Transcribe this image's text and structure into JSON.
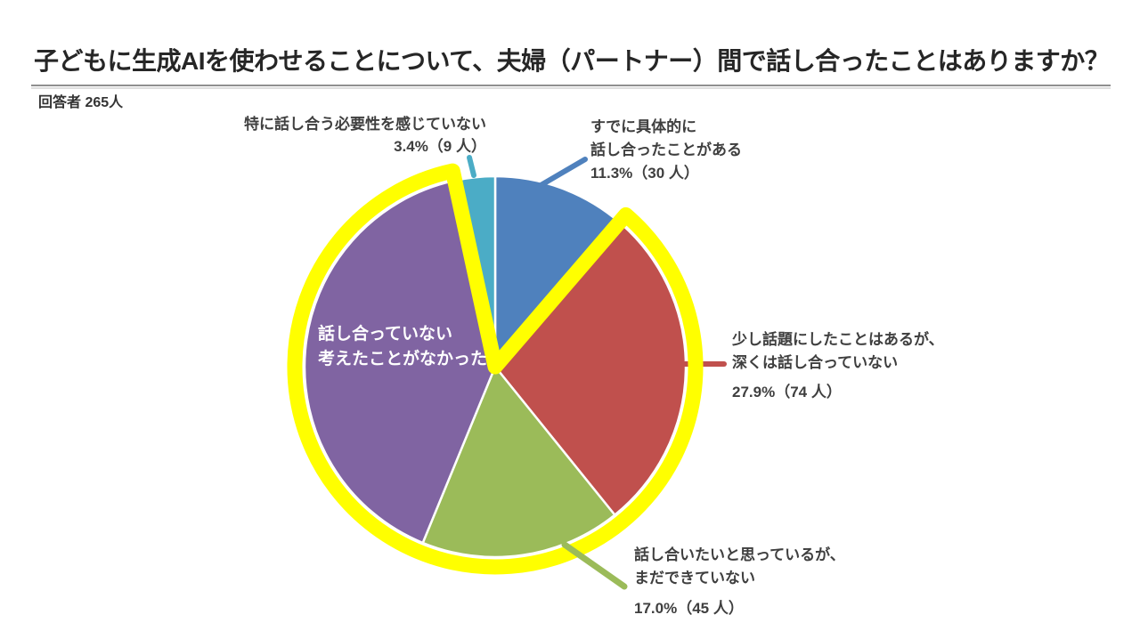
{
  "title": "子どもに生成AIを使わせることについて、夫婦（パートナー）間で話し合ったことはありますか？",
  "respondents": "回答者 265人",
  "chart_data": {
    "type": "pie",
    "title": "子どもに生成AIを使わせることについて、夫婦（パートナー）間で話し合ったことはありますか？",
    "total_label": "回答者 265人",
    "total": 265,
    "unit": "人",
    "start_angle_deg": 0,
    "direction": "clockwise",
    "highlight_color": "#FFFF00",
    "separator_color": "#FFFFFF",
    "slices": [
      {
        "key": "already-discussed",
        "label": "すでに具体的に話し合ったことがある",
        "percent": 11.3,
        "count": 30,
        "color": "#4F81BD",
        "highlighted": false
      },
      {
        "key": "discussed-lightly",
        "label": "少し話題にしたことはあるが、深くは話し合っていない",
        "percent": 27.9,
        "count": 74,
        "color": "#C0504D",
        "highlighted": true
      },
      {
        "key": "want-to-discuss",
        "label": "話し合いたいと思っているが、まだできていない",
        "percent": 17.0,
        "count": 45,
        "color": "#9BBB59",
        "highlighted": true
      },
      {
        "key": "not-discussed",
        "label": "話し合っていない・考えたことがなかった",
        "percent": 40.4,
        "count": 107,
        "color": "#8064A2",
        "highlighted": true
      },
      {
        "key": "no-need-felt",
        "label": "特に話し合う必要性を感じていない",
        "percent": 3.4,
        "count": 9,
        "color": "#4BACC6",
        "highlighted": false
      }
    ]
  },
  "callouts": {
    "teal": {
      "line1": "特に話し合う必要性を感じていない",
      "value": "3.4%（9 人）"
    },
    "blue": {
      "line1": "すでに具体的に",
      "line2": "話し合ったことがある",
      "value": "11.3%（30 人）"
    },
    "red": {
      "line1": "少し話題にしたことはあるが、",
      "line2": "深くは話し合っていない",
      "value": "27.9%（74 人）"
    },
    "green": {
      "line1": "話し合いたいと思っているが、",
      "line2": "まだできていない",
      "value": "17.0%（45 人）"
    },
    "purple": {
      "line1": "話し合っていない",
      "line2": "考えたことがなかった"
    }
  }
}
